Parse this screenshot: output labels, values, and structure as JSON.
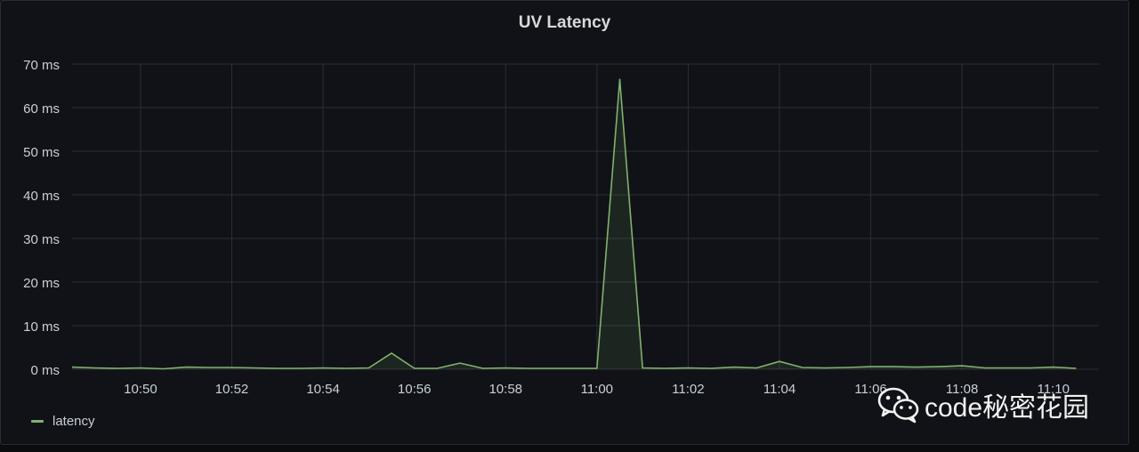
{
  "panel": {
    "title": "UV Latency"
  },
  "chart_data": {
    "type": "line",
    "title": "UV Latency",
    "x_start": "10:48:30",
    "x_end": "11:11",
    "xticks": [
      "10:50",
      "10:52",
      "10:54",
      "10:56",
      "10:58",
      "11:00",
      "11:02",
      "11:04",
      "11:06",
      "11:08",
      "11:10"
    ],
    "yticks": [
      "0 ms",
      "10 ms",
      "20 ms",
      "30 ms",
      "40 ms",
      "50 ms",
      "60 ms",
      "70 ms"
    ],
    "ylim": [
      0,
      70
    ],
    "y_unit": "ms",
    "grid": true,
    "legend_position": "bottom-left",
    "series": [
      {
        "name": "latency",
        "color": "#7eb26d",
        "x": [
          "10:48:30",
          "10:49:00",
          "10:49:30",
          "10:50:00",
          "10:50:30",
          "10:51:00",
          "10:51:30",
          "10:52:00",
          "10:52:30",
          "10:53:00",
          "10:53:30",
          "10:54:00",
          "10:54:30",
          "10:55:00",
          "10:55:30",
          "10:56:00",
          "10:56:30",
          "10:57:00",
          "10:57:30",
          "10:58:00",
          "10:58:30",
          "10:59:00",
          "10:59:30",
          "11:00:00",
          "11:00:30",
          "11:01:00",
          "11:01:30",
          "11:02:00",
          "11:02:30",
          "11:03:00",
          "11:03:30",
          "11:04:00",
          "11:04:30",
          "11:05:00",
          "11:05:30",
          "11:06:00",
          "11:06:30",
          "11:07:00",
          "11:07:30",
          "11:08:00",
          "11:08:30",
          "11:09:00",
          "11:09:30",
          "11:10:00",
          "11:10:30"
        ],
        "values": [
          0.5,
          0.3,
          0.2,
          0.3,
          0.1,
          0.5,
          0.4,
          0.4,
          0.3,
          0.2,
          0.2,
          0.3,
          0.2,
          0.3,
          3.7,
          0.2,
          0.2,
          1.4,
          0.2,
          0.3,
          0.2,
          0.2,
          0.2,
          0.2,
          66.5,
          0.3,
          0.2,
          0.3,
          0.2,
          0.5,
          0.3,
          1.8,
          0.4,
          0.3,
          0.4,
          0.6,
          0.6,
          0.5,
          0.6,
          0.8,
          0.3,
          0.3,
          0.3,
          0.5,
          0.2
        ]
      }
    ]
  },
  "legend": {
    "label": "latency",
    "color": "#7eb26d"
  },
  "watermark": {
    "text": "code秘密花园",
    "icon": "wechat-icon"
  }
}
